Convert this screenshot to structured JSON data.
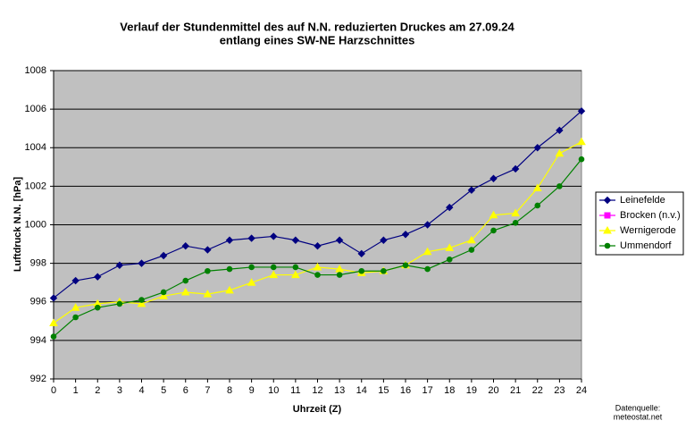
{
  "chart_data": {
    "type": "line",
    "title": [
      "Verlauf der Stundenmittel des auf N.N. reduzierten Druckes am 27.09.24",
      "entlang eines SW-NE Harzschnittes"
    ],
    "x_label": "Uhrzeit (Z)",
    "y_label": "Luftdruck N.N. [hPa]",
    "source": [
      "Datenquelle:",
      "meteostat.net"
    ],
    "x": [
      0,
      1,
      2,
      3,
      4,
      5,
      6,
      7,
      8,
      9,
      10,
      11,
      12,
      13,
      14,
      15,
      16,
      17,
      18,
      19,
      20,
      21,
      22,
      23,
      24
    ],
    "xlim": [
      0,
      24
    ],
    "xticks": [
      0,
      1,
      2,
      3,
      4,
      5,
      6,
      7,
      8,
      9,
      10,
      11,
      12,
      13,
      14,
      15,
      16,
      17,
      18,
      19,
      20,
      21,
      22,
      23,
      24
    ],
    "ylim": [
      992,
      1008
    ],
    "yticks": [
      992,
      994,
      996,
      998,
      1000,
      1002,
      1004,
      1006,
      1008
    ],
    "grid": true,
    "legend": "right",
    "series": [
      {
        "name": "Leinefelde",
        "color": "#000080",
        "marker": "diamond",
        "values": [
          996.2,
          997.1,
          997.3,
          997.9,
          998.0,
          998.4,
          998.9,
          998.7,
          999.2,
          999.3,
          999.4,
          999.2,
          998.9,
          999.2,
          998.5,
          999.2,
          999.5,
          1000.0,
          1000.9,
          1001.8,
          1002.4,
          1002.9,
          1004.0,
          1004.9,
          1005.9
        ]
      },
      {
        "name": "Brocken (n.v.)",
        "color": "#ff00ff",
        "marker": "square",
        "values": [
          null,
          null,
          null,
          null,
          null,
          null,
          null,
          null,
          null,
          null,
          null,
          null,
          null,
          null,
          null,
          null,
          null,
          null,
          null,
          null,
          null,
          null,
          null,
          null,
          null
        ]
      },
      {
        "name": "Wernigerode",
        "color": "#ffff00",
        "marker": "triangle",
        "values": [
          994.9,
          995.7,
          995.9,
          996.0,
          995.9,
          996.3,
          996.5,
          996.4,
          996.6,
          997.0,
          997.4,
          997.4,
          997.8,
          997.7,
          997.5,
          997.6,
          997.9,
          998.6,
          998.8,
          999.2,
          1000.5,
          1000.6,
          1001.9,
          1003.7,
          1004.3
        ]
      },
      {
        "name": "Ummendorf",
        "color": "#008000",
        "marker": "circle",
        "values": [
          994.2,
          995.2,
          995.7,
          995.9,
          996.1,
          996.5,
          997.1,
          997.6,
          997.7,
          997.8,
          997.8,
          997.8,
          997.4,
          997.4,
          997.6,
          997.6,
          997.9,
          997.7,
          998.2,
          998.7,
          999.7,
          1000.1,
          1001.0,
          1002.0,
          1003.4
        ]
      }
    ]
  }
}
